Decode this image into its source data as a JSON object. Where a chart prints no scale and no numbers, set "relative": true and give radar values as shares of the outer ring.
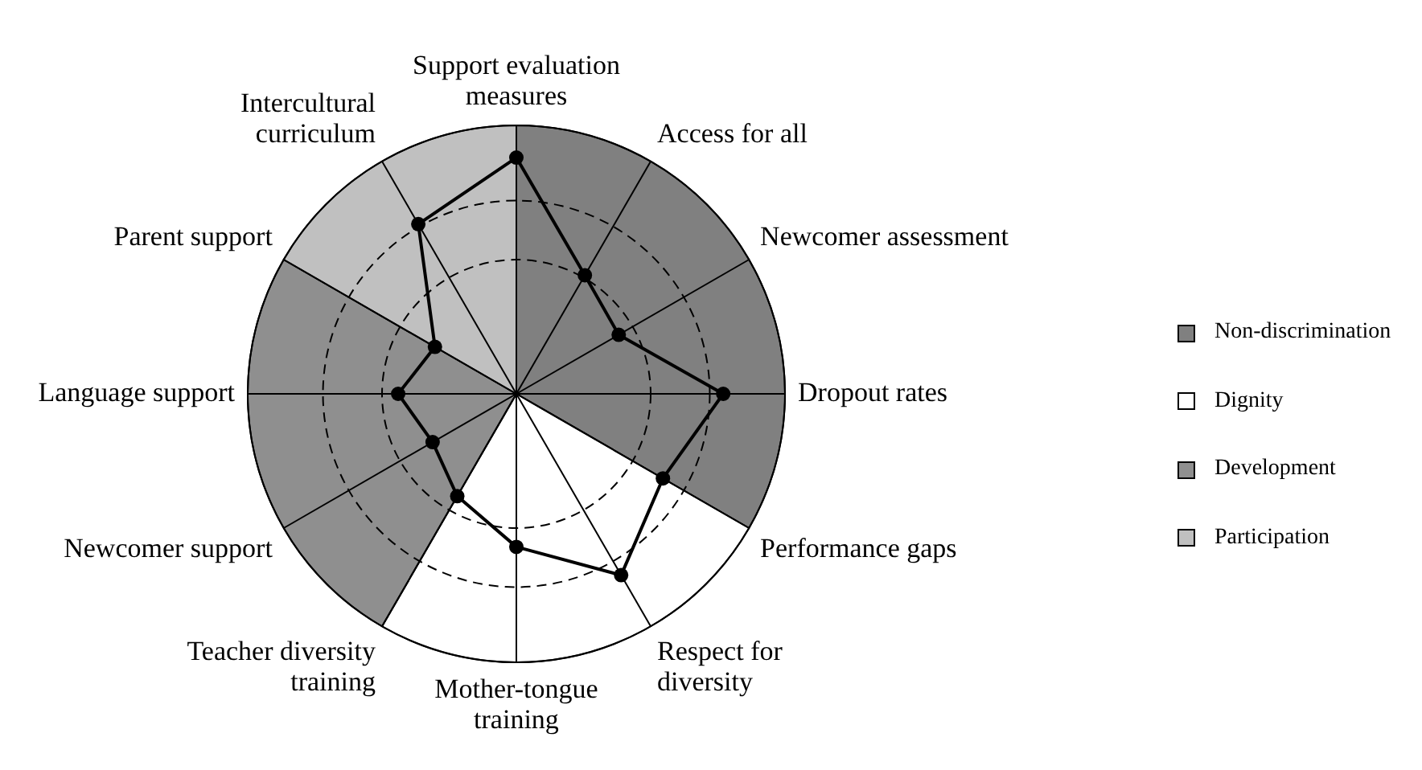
{
  "chart_data": {
    "type": "radar",
    "relative": true,
    "categories": [
      "Support evaluation measures",
      "Access for all",
      "Newcomer assessment",
      "Dropout rates",
      "Performance gaps",
      "Respect for diversity",
      "Mother-tongue training",
      "Teacher diversity training",
      "Newcomer support",
      "Language support",
      "Parent support",
      "Intercultural curriculum"
    ],
    "series": [
      {
        "name": "Non-discrimination",
        "type": "area",
        "marker": "none",
        "color": "#808080",
        "values": [
          1,
          1,
          1,
          1,
          1,
          null,
          null,
          null,
          null,
          null,
          null,
          null
        ]
      },
      {
        "name": "Dignity",
        "type": "area",
        "marker": "none",
        "color": "#ffffff",
        "values": [
          null,
          null,
          null,
          null,
          1,
          1,
          1,
          1,
          null,
          null,
          null,
          null
        ]
      },
      {
        "name": "Development",
        "type": "area",
        "marker": "none",
        "color": "#8f8f8f",
        "values": [
          null,
          null,
          null,
          null,
          null,
          null,
          null,
          1,
          1,
          1,
          1,
          null
        ]
      },
      {
        "name": "Participation",
        "type": "area",
        "marker": "none",
        "color": "#c0c0c0",
        "values": [
          1,
          null,
          null,
          null,
          null,
          null,
          null,
          null,
          null,
          null,
          1,
          1
        ]
      },
      {
        "color": "#000000",
        "values": [
          0.88,
          0.51,
          0.44,
          0.77,
          0.63,
          0.78,
          0.57,
          0.44,
          0.36,
          0.44,
          0.35,
          0.73
        ]
      }
    ],
    "grid": true,
    "legend": "right",
    "marker": "circle",
    "line_style": "solid"
  }
}
